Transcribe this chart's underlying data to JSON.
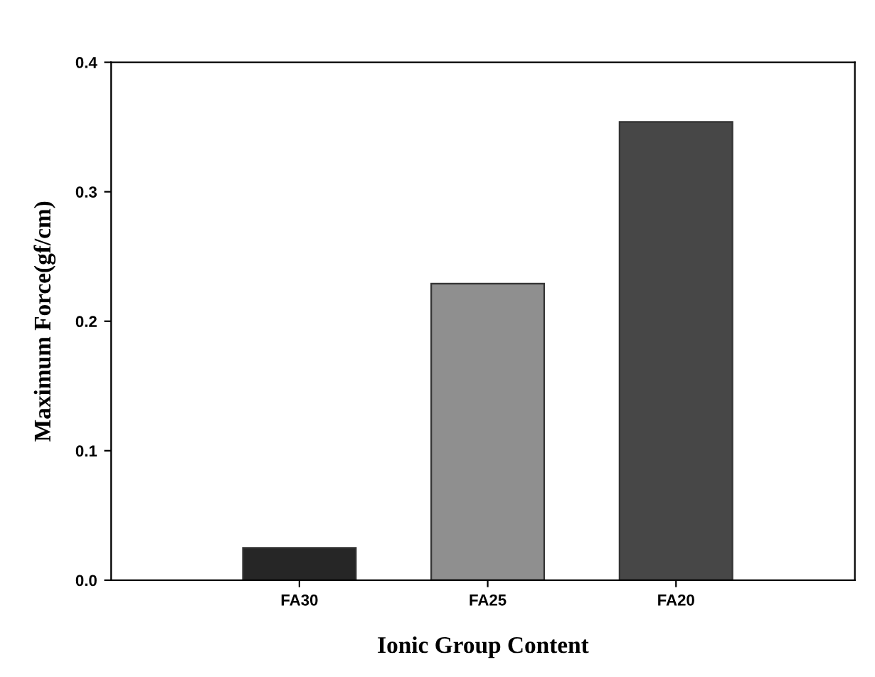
{
  "chart_data": {
    "type": "bar",
    "xlabel": "Ionic Group Content",
    "ylabel": "Maximum Force(gf/cm)",
    "categories": [
      "FA30",
      "FA25",
      "FA20"
    ],
    "values": [
      0.025,
      0.229,
      0.354
    ],
    "colors": [
      "#262626",
      "#8f8f8f",
      "#474747"
    ],
    "ylim": [
      0,
      0.4
    ],
    "yticks": [
      {
        "value": 0,
        "label": "0.0"
      },
      {
        "value": 0.1,
        "label": "0.1"
      },
      {
        "value": 0.2,
        "label": "0.2"
      },
      {
        "value": 0.3,
        "label": "0.3"
      },
      {
        "value": 0.4,
        "label": "0.4"
      }
    ],
    "grid": false,
    "legend": false
  }
}
